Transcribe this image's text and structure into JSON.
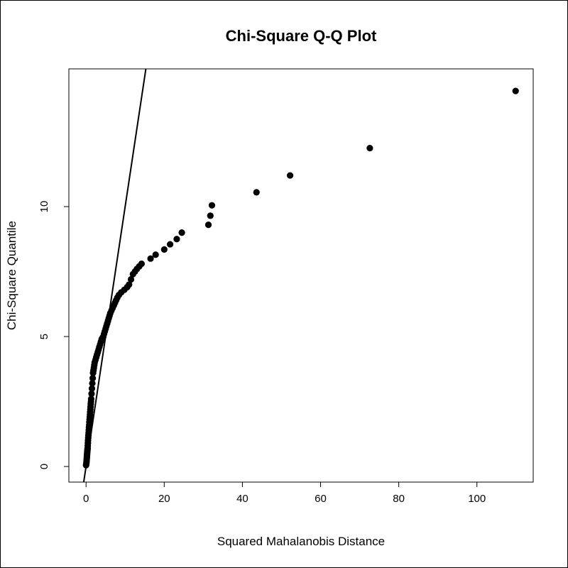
{
  "chart_data": {
    "type": "scatter",
    "title": "Chi-Square Q-Q Plot",
    "xlabel": "Squared Mahalanobis Distance",
    "ylabel": "Chi-Square Quantile",
    "xlim": [
      -4.4,
      114.4
    ],
    "ylim": [
      -0.6,
      15.3
    ],
    "xticks": [
      0,
      20,
      40,
      60,
      80,
      100
    ],
    "yticks": [
      0,
      5,
      10
    ],
    "grid": false,
    "reference_line": {
      "intercept": 0,
      "slope": 1
    },
    "colors": {
      "points": "#000000",
      "line": "#000000"
    },
    "series": [
      {
        "x": [
          0.0,
          0.05,
          0.1,
          0.12,
          0.15,
          0.18,
          0.2,
          0.22,
          0.25,
          0.28,
          0.3,
          0.33,
          0.36,
          0.4,
          0.43,
          0.47,
          0.5,
          0.55,
          0.6,
          0.65,
          0.7,
          0.75,
          0.8,
          0.85,
          0.9,
          0.95,
          1.0,
          1.05,
          1.1,
          1.15,
          1.2,
          1.25,
          1.3,
          1.4,
          1.5,
          1.6,
          1.7,
          1.8,
          1.9,
          2.0,
          2.1,
          2.2,
          2.4,
          2.6,
          2.8,
          3.0,
          3.2,
          3.4,
          3.6,
          3.8,
          4.0,
          4.2,
          4.4,
          4.6,
          4.8,
          5.0,
          5.2,
          5.4,
          5.6,
          5.8,
          6.0,
          6.2,
          6.5,
          6.8,
          7.1,
          7.4,
          7.7,
          8.0,
          8.4,
          9.0,
          9.8,
          10.5,
          11.0,
          11.5,
          12.0,
          12.5,
          13.0,
          13.6,
          14.2,
          16.5,
          17.8,
          20.0,
          21.5,
          23.2,
          24.5,
          31.3,
          31.8,
          32.2,
          43.6,
          52.2,
          72.6,
          109.9
        ],
        "y": [
          0.05,
          0.1,
          0.15,
          0.2,
          0.25,
          0.3,
          0.35,
          0.4,
          0.45,
          0.5,
          0.55,
          0.6,
          0.65,
          0.7,
          0.8,
          0.9,
          1.0,
          1.1,
          1.2,
          1.3,
          1.4,
          1.5,
          1.6,
          1.7,
          1.8,
          1.9,
          2.0,
          2.1,
          2.2,
          2.3,
          2.4,
          2.5,
          2.6,
          2.8,
          3.0,
          3.2,
          3.4,
          3.6,
          3.7,
          3.8,
          3.9,
          4.0,
          4.1,
          4.2,
          4.3,
          4.4,
          4.5,
          4.6,
          4.7,
          4.8,
          4.9,
          4.95,
          5.0,
          5.1,
          5.2,
          5.3,
          5.4,
          5.5,
          5.6,
          5.7,
          5.8,
          5.9,
          6.0,
          6.1,
          6.2,
          6.3,
          6.4,
          6.5,
          6.6,
          6.7,
          6.8,
          6.9,
          7.0,
          7.2,
          7.4,
          7.5,
          7.6,
          7.7,
          7.8,
          8.0,
          8.15,
          8.35,
          8.55,
          8.75,
          9.0,
          9.3,
          9.65,
          10.05,
          10.55,
          11.2,
          12.25,
          14.45
        ]
      }
    ]
  }
}
